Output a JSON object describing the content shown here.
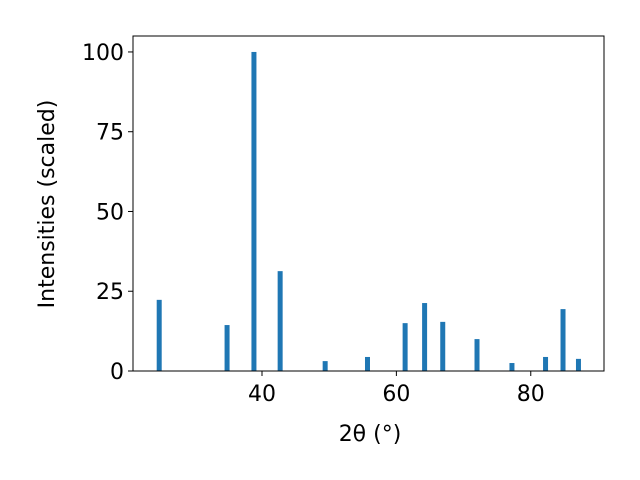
{
  "chart_data": {
    "type": "bar",
    "x_label": "2θ (°)",
    "y_label": "Intensities (scaled)",
    "x": [
      24.7,
      34.8,
      38.8,
      42.7,
      49.4,
      55.7,
      61.3,
      64.2,
      66.9,
      72.0,
      77.2,
      82.2,
      84.8,
      87.1
    ],
    "values": [
      22.3,
      14.4,
      100,
      31.3,
      3.1,
      4.4,
      15.0,
      21.3,
      15.4,
      10.0,
      2.5,
      4.4,
      19.4,
      3.8
    ],
    "color": "#1f77b4",
    "xlim": [
      20.8,
      90.9
    ],
    "ylim": [
      0,
      105
    ],
    "xticks": [
      40,
      60,
      80
    ],
    "yticks": [
      0,
      25,
      50,
      75,
      100
    ],
    "grid": false
  }
}
